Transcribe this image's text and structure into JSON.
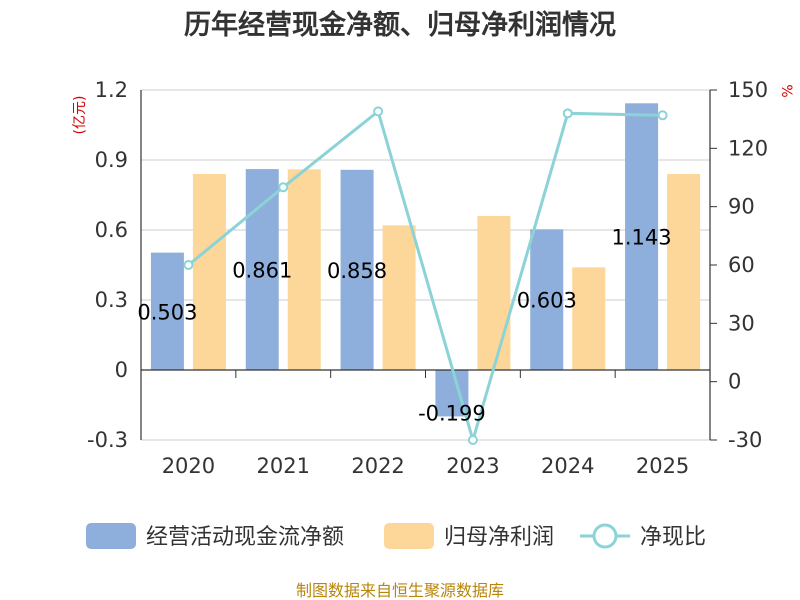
{
  "chart_data": {
    "type": "bar",
    "title": "历年经营现金净额、归母净利润情况",
    "categories": [
      "2020",
      "2021",
      "2022",
      "2023",
      "2024",
      "2025"
    ],
    "series": [
      {
        "name": "经营活动现金流净额",
        "axis": "left",
        "kind": "bar",
        "color": "#8eaedb",
        "values": [
          0.503,
          0.861,
          0.858,
          -0.199,
          0.603,
          1.143
        ],
        "labels": [
          "0.503",
          "0.861",
          "0.858",
          "-0.199",
          "0.603",
          "1.143"
        ]
      },
      {
        "name": "归母净利润",
        "axis": "left",
        "kind": "bar",
        "color": "#fdd79a",
        "values": [
          0.84,
          0.86,
          0.62,
          0.66,
          0.44,
          0.84
        ]
      },
      {
        "name": "净现比",
        "axis": "right",
        "kind": "line",
        "color": "#8bd3d7",
        "values": [
          60,
          100,
          139,
          -30,
          138,
          137
        ]
      }
    ],
    "y_left": {
      "unit": "(亿元)",
      "min": -0.3,
      "max": 1.2,
      "ticks": [
        "-0.3",
        "0",
        "0.3",
        "0.6",
        "0.9",
        "1.2"
      ]
    },
    "y_right": {
      "unit": "%",
      "min": -30,
      "max": 150,
      "ticks": [
        "-30",
        "0",
        "30",
        "60",
        "90",
        "120",
        "150"
      ]
    },
    "grid": true,
    "legend_position": "bottom"
  },
  "footer": {
    "source": "制图数据来自恒生聚源数据库"
  }
}
